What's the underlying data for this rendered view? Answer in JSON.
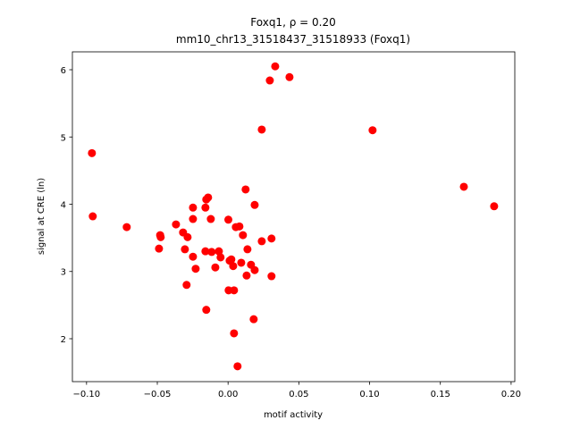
{
  "chart_data": {
    "type": "scatter",
    "title": "Foxq1, ρ = 0.20",
    "subtitle": "mm10_chr13_31518437_31518933 (Foxq1)",
    "x_label": "motif activity",
    "y_label": "signal at CRE (ln)",
    "color": "#ff0000",
    "xlim": [
      -0.11,
      0.2026
    ],
    "ylim": [
      1.362,
      6.266
    ],
    "xticks": [
      {
        "value": -0.1,
        "label": "−0.10"
      },
      {
        "value": -0.05,
        "label": "−0.05"
      },
      {
        "value": 0,
        "label": "0.00"
      },
      {
        "value": 0.05,
        "label": "0.05"
      },
      {
        "value": 0.1,
        "label": "0.10"
      },
      {
        "value": 0.15,
        "label": "0.15"
      },
      {
        "value": 0.2,
        "label": "0.20"
      }
    ],
    "yticks": [
      2,
      3,
      4,
      5,
      6
    ],
    "x": [
      -0.0962,
      -0.0956,
      -0.0716,
      -0.048,
      -0.0476,
      -0.0488,
      -0.0368,
      -0.0318,
      -0.0286,
      -0.0305,
      -0.0293,
      -0.0248,
      -0.0248,
      -0.0248,
      -0.0229,
      -0.016,
      -0.0154,
      -0.0141,
      -0.016,
      -0.0122,
      -0.0116,
      -0.0154,
      -0.009,
      -0.0065,
      -0.0053,
      0.0002,
      0.0004,
      0.0011,
      0.0023,
      0.0036,
      0.0042,
      0.0042,
      0.0055,
      0.008,
      0.0067,
      0.0093,
      0.0105,
      0.0124,
      0.0131,
      0.0137,
      0.0162,
      0.0188,
      0.0188,
      0.0181,
      0.0238,
      0.0238,
      0.0295,
      0.0307,
      0.0307,
      0.0333,
      0.0434,
      0.1021,
      0.1666,
      0.188
    ],
    "values": [
      4.76,
      3.82,
      3.66,
      3.54,
      3.51,
      3.34,
      3.7,
      3.58,
      3.51,
      3.33,
      2.8,
      3.95,
      3.78,
      3.22,
      3.04,
      3.95,
      4.07,
      4.1,
      3.3,
      3.78,
      3.29,
      2.43,
      3.06,
      3.3,
      3.21,
      3.77,
      2.72,
      3.16,
      3.18,
      3.08,
      2.72,
      2.08,
      3.66,
      3.67,
      1.59,
      3.13,
      3.54,
      4.22,
      2.94,
      3.33,
      3.1,
      3.99,
      3.02,
      2.29,
      3.45,
      5.11,
      5.84,
      3.49,
      2.93,
      6.05,
      5.89,
      5.1,
      4.26,
      3.97
    ]
  }
}
